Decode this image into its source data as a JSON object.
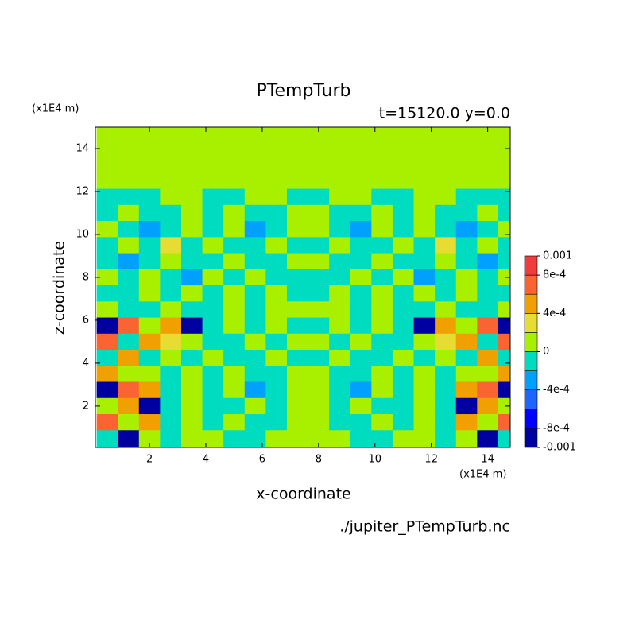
{
  "chart_data": {
    "type": "contour",
    "title": "PTempTurb",
    "subtitle": "t=15120.0 y=0.0",
    "y_units": "(x1E4 m)",
    "x_units": "(x1E4 m)",
    "xlabel": "x-coordinate",
    "ylabel": "z-coordinate",
    "source": "./jupiter_PTempTurb.nc",
    "xlim": [
      0.08,
      14.8
    ],
    "ylim": [
      0.07,
      15
    ],
    "xticks": [
      2,
      4,
      6,
      8,
      10,
      12,
      14
    ],
    "yticks": [
      2,
      4,
      6,
      8,
      10,
      12,
      14
    ],
    "levels": [
      -0.001,
      -0.0008,
      -0.0006,
      -0.0004,
      -0.0002,
      0,
      0.0002,
      0.0004,
      0.0006,
      0.0008,
      0.001
    ],
    "colors": [
      "#0000a0",
      "#0000ff",
      "#1e64ff",
      "#00a0ff",
      "#00dcc0",
      "#a8f000",
      "#e6dc32",
      "#f0a000",
      "#fa6432",
      "#f03c3c"
    ],
    "colorbar_ticks": [
      0.001,
      {
        "value": 0.0008,
        "label": "8e-4"
      },
      {
        "value": 0.0004,
        "label": "4e-4"
      },
      0,
      {
        "value": -0.0004,
        "label": "-4e-4"
      },
      {
        "value": -0.0008,
        "label": "-8e-4"
      },
      -0.001
    ],
    "x": [
      0.5,
      1.25,
      2.0,
      2.75,
      3.5,
      4.25,
      5.0,
      5.75,
      6.5,
      7.25,
      8.0,
      8.75,
      9.5,
      10.25,
      11.0,
      11.75,
      12.5,
      13.25,
      14.0,
      14.75
    ],
    "y": [
      14.75,
      14.0,
      13.25,
      12.5,
      11.75,
      11.0,
      10.25,
      9.5,
      8.75,
      8.0,
      7.25,
      6.5,
      5.75,
      5.0,
      4.25,
      3.5,
      2.75,
      2.0,
      1.25,
      0.5
    ],
    "z": [
      [
        0.0001,
        0.0001,
        0.0001,
        0.0001,
        0.0001,
        0.0001,
        0.0001,
        0.0001,
        0.0001,
        0.0001,
        0.0001,
        0.0001,
        0.0001,
        0.0001,
        0.0001,
        0.0001,
        0.0001,
        0.0001,
        0.0001,
        0.0001
      ],
      [
        0.0001,
        0.0001,
        0.0001,
        0.0001,
        0.0001,
        0.0001,
        0.0001,
        0.0001,
        0.0001,
        0.0001,
        0.0001,
        0.0001,
        0.0001,
        0.0001,
        0.0001,
        0.0001,
        0.0001,
        0.0001,
        0.0001,
        0.0001
      ],
      [
        0.0001,
        0.0001,
        0.0001,
        0.0001,
        0.0001,
        0.0001,
        0.0001,
        0.0001,
        0.0001,
        0.0001,
        0.0001,
        0.0001,
        0.0001,
        0.0001,
        0.0001,
        0.0001,
        0.0001,
        0.0001,
        0.0001,
        0.0001
      ],
      [
        0.0001,
        0.0001,
        0.0001,
        0.0001,
        0.0001,
        0.0001,
        0.0001,
        0.0001,
        0.0001,
        0.0001,
        0.0001,
        0.0001,
        0.0001,
        0.0001,
        0.0001,
        0.0001,
        0.0001,
        0.0001,
        0.0001,
        0.0001
      ],
      [
        -0.0001,
        -0.0001,
        -0.0001,
        0.0001,
        0.0001,
        -0.0001,
        -0.0001,
        0.0001,
        0.0001,
        -0.0001,
        -0.0001,
        0.0001,
        0.0001,
        -0.0001,
        -0.0001,
        0.0001,
        0.0001,
        -0.0001,
        -0.0001,
        -0.0001
      ],
      [
        -0.0001,
        0.0001,
        -0.0001,
        -0.0001,
        0.0001,
        -0.0001,
        0.0001,
        -0.0001,
        -0.0001,
        0.0001,
        0.0001,
        -0.0001,
        -0.0001,
        0.0001,
        -0.0001,
        0.0001,
        -0.0001,
        -0.0001,
        0.0001,
        -0.0001
      ],
      [
        0.0001,
        -0.0001,
        -0.0003,
        -0.0001,
        0.0001,
        -0.0001,
        0.0001,
        -0.0003,
        -0.0001,
        0.0001,
        0.0001,
        -0.0001,
        -0.0003,
        0.0001,
        -0.0001,
        0.0001,
        -0.0001,
        -0.0003,
        -0.0001,
        0.0001
      ],
      [
        -0.0001,
        0.0001,
        -0.0001,
        0.0003,
        -0.0001,
        0.0001,
        -0.0001,
        -0.0001,
        0.0001,
        -0.0001,
        -0.0001,
        0.0001,
        -0.0001,
        -0.0001,
        0.0001,
        -0.0001,
        0.0003,
        -0.0001,
        0.0001,
        -0.0001
      ],
      [
        -0.0001,
        -0.0003,
        -0.0001,
        0.0001,
        -0.0001,
        -0.0001,
        0.0001,
        -0.0001,
        -0.0001,
        0.0001,
        0.0001,
        -0.0001,
        -0.0001,
        0.0001,
        -0.0001,
        -0.0001,
        0.0001,
        -0.0001,
        -0.0003,
        -0.0001
      ],
      [
        0.0001,
        -0.0001,
        0.0001,
        -0.0001,
        -0.0003,
        0.0001,
        -0.0001,
        0.0001,
        -0.0001,
        -0.0001,
        -0.0001,
        -0.0001,
        0.0001,
        -0.0001,
        0.0001,
        -0.0003,
        -0.0001,
        0.0001,
        -0.0001,
        0.0001
      ],
      [
        -0.0001,
        -0.0001,
        0.0001,
        -0.0001,
        0.0001,
        -0.0001,
        0.0001,
        -0.0001,
        0.0001,
        -0.0001,
        -0.0001,
        0.0001,
        -0.0001,
        0.0001,
        -0.0001,
        0.0001,
        -0.0001,
        0.0001,
        -0.0001,
        -0.0001
      ],
      [
        0.0001,
        -0.0001,
        -0.0001,
        0.0001,
        -0.0001,
        -0.0001,
        0.0001,
        -0.0001,
        0.0001,
        0.0001,
        0.0001,
        0.0001,
        -0.0001,
        0.0001,
        -0.0001,
        -0.0001,
        0.0001,
        -0.0001,
        -0.0001,
        0.0001
      ],
      [
        -0.0009,
        0.0007,
        0.0001,
        0.0005,
        -0.0009,
        -0.0001,
        0.0001,
        -0.0001,
        0.0001,
        -0.0001,
        -0.0001,
        0.0001,
        -0.0001,
        0.0001,
        -0.0001,
        -0.0009,
        0.0005,
        0.0001,
        0.0007,
        -0.0009
      ],
      [
        0.0007,
        -0.0001,
        0.0005,
        0.0003,
        0.0001,
        -0.0001,
        -0.0001,
        0.0001,
        -0.0001,
        0.0001,
        0.0001,
        -0.0001,
        0.0001,
        -0.0001,
        -0.0001,
        0.0001,
        0.0003,
        0.0005,
        -0.0001,
        0.0007
      ],
      [
        -0.0001,
        0.0005,
        -0.0001,
        0.0001,
        -0.0001,
        0.0001,
        -0.0001,
        -0.0001,
        0.0001,
        -0.0001,
        -0.0001,
        0.0001,
        -0.0001,
        -0.0001,
        0.0001,
        -0.0001,
        0.0001,
        -0.0001,
        0.0005,
        -0.0001
      ],
      [
        0.0005,
        0.0001,
        0.0001,
        -0.0001,
        0.0001,
        -0.0001,
        0.0001,
        -0.0001,
        -0.0001,
        0.0001,
        0.0001,
        -0.0001,
        -0.0001,
        0.0001,
        -0.0001,
        0.0001,
        -0.0001,
        0.0001,
        0.0001,
        0.0005
      ],
      [
        -0.0009,
        0.0007,
        0.0005,
        -0.0001,
        0.0001,
        -0.0001,
        0.0001,
        -0.0003,
        -0.0001,
        0.0001,
        0.0001,
        -0.0001,
        -0.0003,
        0.0001,
        -0.0001,
        0.0001,
        -0.0001,
        0.0005,
        0.0007,
        -0.0009
      ],
      [
        0.0001,
        0.0005,
        -0.0009,
        -0.0001,
        0.0001,
        -0.0001,
        -0.0001,
        0.0001,
        -0.0001,
        0.0001,
        0.0001,
        -0.0001,
        0.0001,
        -0.0001,
        -0.0001,
        0.0001,
        -0.0001,
        -0.0009,
        0.0005,
        0.0001
      ],
      [
        0.0007,
        0.0001,
        0.0005,
        -0.0001,
        0.0001,
        -0.0001,
        0.0001,
        -0.0001,
        -0.0001,
        0.0001,
        0.0001,
        -0.0001,
        -0.0001,
        0.0001,
        -0.0001,
        0.0001,
        -0.0001,
        0.0005,
        0.0001,
        0.0007
      ],
      [
        -0.0001,
        -0.0009,
        0.0001,
        -0.0001,
        0.0001,
        0.0001,
        -0.0001,
        -0.0001,
        0.0001,
        0.0001,
        0.0001,
        0.0001,
        -0.0001,
        -0.0001,
        0.0001,
        0.0001,
        -0.0001,
        0.0001,
        -0.0009,
        -0.0001
      ]
    ]
  }
}
